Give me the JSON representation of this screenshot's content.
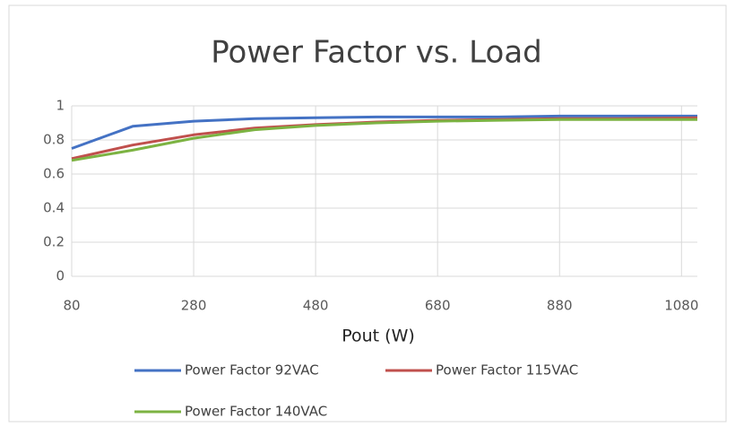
{
  "chart_data": {
    "type": "line",
    "title": "Power Factor vs. Load",
    "x_label": "Pout (W)",
    "x": [
      80,
      180,
      280,
      380,
      480,
      580,
      680,
      780,
      880,
      980,
      1106
    ],
    "series": [
      {
        "name": "Power Factor 92VAC",
        "color": "#4472c4",
        "values": [
          0.75,
          0.88,
          0.91,
          0.925,
          0.93,
          0.935,
          0.935,
          0.935,
          0.94,
          0.94,
          0.94
        ]
      },
      {
        "name": "Power Factor 115VAC",
        "color": "#c0504d",
        "values": [
          0.69,
          0.77,
          0.83,
          0.87,
          0.89,
          0.905,
          0.915,
          0.92,
          0.925,
          0.925,
          0.93
        ]
      },
      {
        "name": "Power Factor 140VAC",
        "color": "#7cb342",
        "values": [
          0.68,
          0.74,
          0.81,
          0.86,
          0.885,
          0.9,
          0.91,
          0.915,
          0.92,
          0.92,
          0.92
        ]
      }
    ],
    "xlim": [
      80,
      1106
    ],
    "xticks": [
      80,
      280,
      480,
      680,
      880,
      1080
    ],
    "ylim": [
      0,
      1
    ],
    "yticks": [
      0,
      0.2,
      0.4,
      0.6,
      0.8,
      1
    ],
    "grid": true
  }
}
